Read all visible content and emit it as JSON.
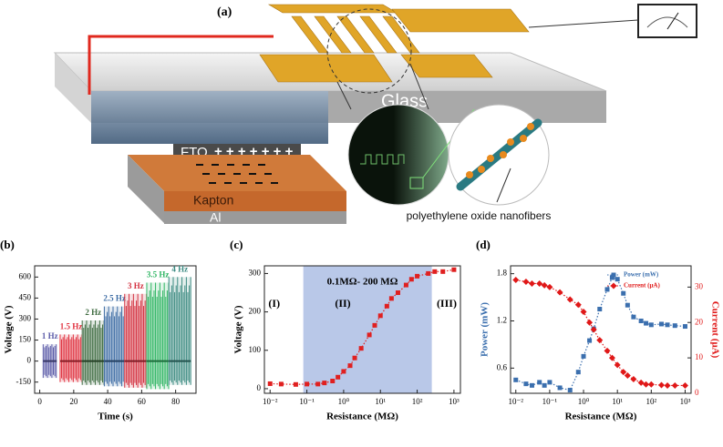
{
  "diagram": {
    "panel": "(a)",
    "glass": "Glass",
    "fto": "FTO",
    "charges": "+ + + + + + +",
    "kapton": "Kapton",
    "al": "Al",
    "fiber_label": "polyethylene oxide nanofibers"
  },
  "chart_data": [
    {
      "type": "burst",
      "panel": "(b)",
      "xlabel": "Time (s)",
      "ylabel": "Voltage (V)",
      "xlim": [
        -3,
        92
      ],
      "xticks": [
        0,
        20,
        40,
        60,
        80
      ],
      "ylim": [
        -230,
        680
      ],
      "yticks": [
        -150,
        0,
        150,
        300,
        450,
        600
      ],
      "series": [
        {
          "name": "1 Hz",
          "color": "#5b5ba8",
          "x": [
            2,
            10
          ],
          "values": [
            120,
            -120
          ]
        },
        {
          "name": "1.5 Hz",
          "color": "#e0303e",
          "x": [
            12,
            25
          ],
          "values": [
            190,
            -150
          ]
        },
        {
          "name": "2 Hz",
          "color": "#3e6b40",
          "x": [
            25,
            38
          ],
          "values": [
            290,
            -170
          ]
        },
        {
          "name": "2.5 Hz",
          "color": "#3c6ca4",
          "x": [
            38,
            50
          ],
          "values": [
            390,
            -180
          ]
        },
        {
          "name": "3 Hz",
          "color": "#d3303f",
          "x": [
            50,
            63
          ],
          "values": [
            480,
            -190
          ]
        },
        {
          "name": "3.5 Hz",
          "color": "#2fb563",
          "x": [
            63,
            76
          ],
          "values": [
            560,
            -200
          ]
        },
        {
          "name": "4 Hz",
          "color": "#3b8a82",
          "x": [
            76,
            89
          ],
          "values": [
            600,
            -170
          ]
        }
      ]
    },
    {
      "type": "line",
      "panel": "(c)",
      "xlabel": "Resistance (MΩ)",
      "ylabel": "Voltage (V)",
      "xscale": "log",
      "xlim": [
        0.007,
        1500
      ],
      "xticks": [
        {
          "value": 0.01,
          "label": "10⁻²"
        },
        {
          "value": 0.1,
          "label": "10⁻¹"
        },
        {
          "value": 1,
          "label": "10⁰"
        },
        {
          "value": 10,
          "label": "10¹"
        },
        {
          "value": 100,
          "label": "10²"
        },
        {
          "value": 1000,
          "label": "10³"
        }
      ],
      "ylim": [
        -12,
        320
      ],
      "yticks": [
        0,
        100,
        200,
        300
      ],
      "shade": [
        0.08,
        250
      ],
      "shade_color": "#b9c8e8",
      "annotations": [
        "0.1MΩ- 200 MΩ",
        "(I)",
        "(II)",
        "(III)"
      ],
      "x": [
        0.01,
        0.02,
        0.05,
        0.1,
        0.2,
        0.3,
        0.5,
        0.7,
        1,
        1.5,
        2,
        3,
        5,
        7,
        10,
        15,
        20,
        30,
        50,
        70,
        100,
        200,
        300,
        500,
        1000
      ],
      "series": [
        {
          "name": "Voltage",
          "color": "#e02020",
          "marker": "square",
          "values": [
            13,
            12,
            11,
            12,
            12,
            15,
            20,
            30,
            45,
            60,
            80,
            105,
            140,
            165,
            190,
            215,
            235,
            250,
            270,
            285,
            293,
            300,
            305,
            305,
            310
          ]
        }
      ]
    },
    {
      "type": "line",
      "panel": "(d)",
      "xlabel": "Resistance (MΩ)",
      "ylabel": "Power (mW)",
      "y2label": "Current (μA)",
      "xscale": "log",
      "legend": "upper right",
      "xlim": [
        0.007,
        1500
      ],
      "xticks": [
        {
          "value": 0.01,
          "label": "10⁻²"
        },
        {
          "value": 0.1,
          "label": "10⁻¹"
        },
        {
          "value": 1,
          "label": "10⁰"
        },
        {
          "value": 10,
          "label": "10¹"
        },
        {
          "value": 100,
          "label": "10²"
        },
        {
          "value": 1000,
          "label": "10³"
        }
      ],
      "ylim": [
        0.28,
        1.9
      ],
      "yticks": [
        0.6,
        1.2,
        1.8
      ],
      "y2lim": [
        0,
        36
      ],
      "y2ticks": [
        0,
        10,
        20,
        30
      ],
      "x": [
        0.01,
        0.02,
        0.03,
        0.05,
        0.07,
        0.1,
        0.2,
        0.4,
        0.7,
        1,
        1.5,
        2,
        3,
        5,
        7,
        10,
        15,
        20,
        30,
        50,
        70,
        100,
        200,
        300,
        500,
        1000
      ],
      "series": [
        {
          "name": "Power (mW)",
          "color": "#3b6fae",
          "marker": "square",
          "values": [
            0.45,
            0.4,
            0.38,
            0.42,
            0.38,
            0.42,
            0.35,
            0.32,
            0.55,
            0.75,
            0.95,
            1.1,
            1.35,
            1.6,
            1.75,
            1.73,
            1.55,
            1.4,
            1.25,
            1.2,
            1.17,
            1.15,
            1.16,
            1.15,
            1.14,
            1.13
          ]
        },
        {
          "name": "Current (μA)",
          "color": "#e01818",
          "marker": "diamond",
          "axis": "y2",
          "values": [
            32,
            31.5,
            31,
            31,
            30.5,
            30,
            28.5,
            26.5,
            25,
            23,
            20,
            18,
            15,
            12,
            10,
            8,
            6,
            5,
            4,
            3,
            2.5,
            2.5,
            2.3,
            2.2,
            2.2,
            2.2
          ]
        }
      ]
    }
  ]
}
